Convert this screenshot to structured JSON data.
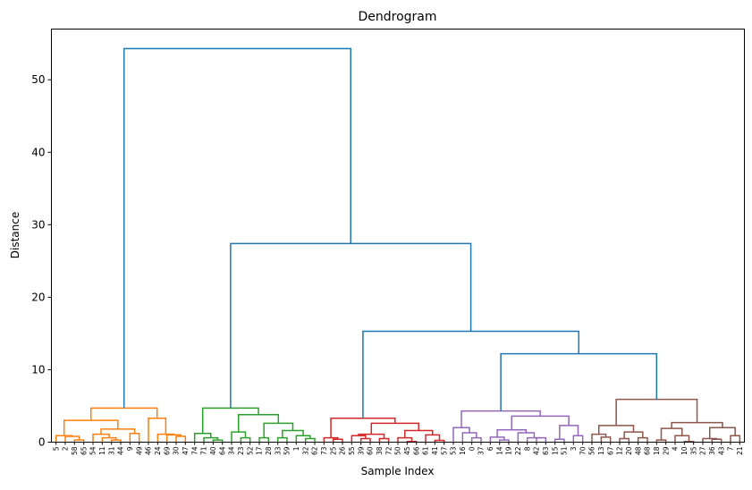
{
  "chart_data": {
    "type": "dendrogram",
    "title": "Dendrogram",
    "xlabel": "Sample Index",
    "ylabel": "Distance",
    "ylim": [
      0,
      57
    ],
    "yticks": [
      0,
      10,
      20,
      30,
      40,
      50
    ],
    "above_threshold_color": "#1f77b4",
    "tree": {
      "h": 54.3,
      "c": [
        {
          "h": 4.7,
          "color": "#ff7f0e",
          "c": [
            {
              "h": 3.0,
              "c": [
                {
                  "h": 0.9,
                  "c": [
                    "5",
                    {
                      "h": 0.8,
                      "c": [
                        "2",
                        {
                          "h": 0.3,
                          "c": [
                            "58",
                            "65"
                          ]
                        }
                      ]
                    }
                  ]
                },
                {
                  "h": 1.8,
                  "c": [
                    {
                      "h": 1.1,
                      "c": [
                        "54",
                        {
                          "h": 0.6,
                          "c": [
                            "11",
                            {
                              "h": 0.3,
                              "c": [
                                "31",
                                "44"
                              ]
                            }
                          ]
                        }
                      ]
                    },
                    {
                      "h": 1.2,
                      "c": [
                        "9",
                        "49"
                      ]
                    }
                  ]
                }
              ]
            },
            {
              "h": 3.3,
              "c": [
                "46",
                {
                  "h": 1.1,
                  "c": [
                    "24",
                    {
                      "h": 1.0,
                      "c": [
                        "69",
                        {
                          "h": 0.8,
                          "c": [
                            "30",
                            "47"
                          ]
                        }
                      ]
                    }
                  ]
                }
              ]
            }
          ]
        },
        {
          "h": 27.4,
          "c": [
            {
              "h": 4.7,
              "color": "#2ca02c",
              "c": [
                {
                  "h": 1.2,
                  "c": [
                    "74",
                    {
                      "h": 0.6,
                      "c": [
                        "71",
                        {
                          "h": 0.3,
                          "c": [
                            "40",
                            "64"
                          ]
                        }
                      ]
                    }
                  ]
                },
                {
                  "h": 3.8,
                  "c": [
                    {
                      "h": 1.4,
                      "c": [
                        "34",
                        {
                          "h": 0.6,
                          "c": [
                            "23",
                            "52"
                          ]
                        }
                      ]
                    },
                    {
                      "h": 2.6,
                      "c": [
                        {
                          "h": 0.6,
                          "c": [
                            "17",
                            "28"
                          ]
                        },
                        {
                          "h": 1.6,
                          "c": [
                            {
                              "h": 0.6,
                              "c": [
                                "33",
                                "59"
                              ]
                            },
                            {
                              "h": 0.9,
                              "c": [
                                "1",
                                {
                                  "h": 0.5,
                                  "c": [
                                    "32",
                                    "62"
                                  ]
                                }
                              ]
                            }
                          ]
                        }
                      ]
                    }
                  ]
                }
              ]
            },
            {
              "h": 15.3,
              "c": [
                {
                  "h": 3.3,
                  "color": "#d62728",
                  "c": [
                    {
                      "h": 0.6,
                      "c": [
                        "73",
                        {
                          "h": 0.4,
                          "c": [
                            "25",
                            "26"
                          ]
                        }
                      ]
                    },
                    {
                      "h": 2.6,
                      "c": [
                        {
                          "h": 1.1,
                          "c": [
                            {
                              "h": 0.9,
                              "c": [
                                "55",
                                {
                                  "h": 0.5,
                                  "c": [
                                    "39",
                                    "60"
                                  ]
                                }
                              ]
                            },
                            {
                              "h": 0.5,
                              "c": [
                                "38",
                                "72"
                              ]
                            }
                          ]
                        },
                        {
                          "h": 1.6,
                          "c": [
                            {
                              "h": 0.6,
                              "c": [
                                "50",
                                {
                                  "h": 0.1,
                                  "c": [
                                    "45",
                                    "66"
                                  ]
                                }
                              ]
                            },
                            {
                              "h": 1.0,
                              "c": [
                                "61",
                                {
                                  "h": 0.25,
                                  "c": [
                                    "41",
                                    "57"
                                  ]
                                }
                              ]
                            }
                          ]
                        }
                      ]
                    }
                  ]
                },
                {
                  "h": 12.2,
                  "c": [
                    {
                      "h": 4.3,
                      "color": "#9467bd",
                      "c": [
                        {
                          "h": 2.0,
                          "c": [
                            "53",
                            {
                              "h": 1.3,
                              "c": [
                                "16",
                                {
                                  "h": 0.6,
                                  "c": [
                                    "0",
                                    "37"
                                  ]
                                }
                              ]
                            }
                          ]
                        },
                        {
                          "h": 3.6,
                          "c": [
                            {
                              "h": 1.7,
                              "c": [
                                {
                                  "h": 0.7,
                                  "c": [
                                    "6",
                                    {
                                      "h": 0.3,
                                      "c": [
                                        "14",
                                        "19"
                                      ]
                                    }
                                  ]
                                },
                                {
                                  "h": 1.3,
                                  "c": [
                                    "22",
                                    {
                                      "h": 0.6,
                                      "c": [
                                        "8",
                                        {
                                          "h": 0.6,
                                          "c": [
                                            "42",
                                            "63"
                                          ]
                                        }
                                      ]
                                    }
                                  ]
                                }
                              ]
                            },
                            {
                              "h": 2.3,
                              "c": [
                                {
                                  "h": 0.4,
                                  "c": [
                                    "15",
                                    "51"
                                  ]
                                },
                                {
                                  "h": 0.9,
                                  "c": [
                                    "3",
                                    "70"
                                  ]
                                }
                              ]
                            }
                          ]
                        }
                      ]
                    },
                    {
                      "h": 5.9,
                      "color": "#8c564b",
                      "c": [
                        {
                          "h": 2.3,
                          "c": [
                            {
                              "h": 1.1,
                              "c": [
                                "56",
                                {
                                  "h": 0.7,
                                  "c": [
                                    "13",
                                    "67"
                                  ]
                                }
                              ]
                            },
                            {
                              "h": 1.4,
                              "c": [
                                {
                                  "h": 0.5,
                                  "c": [
                                    "12",
                                    "20"
                                  ]
                                },
                                {
                                  "h": 0.6,
                                  "c": [
                                    "48",
                                    "68"
                                  ]
                                }
                              ]
                            }
                          ]
                        },
                        {
                          "h": 2.7,
                          "c": [
                            {
                              "h": 1.9,
                              "c": [
                                {
                                  "h": 0.3,
                                  "c": [
                                    "18",
                                    "29"
                                  ]
                                },
                                {
                                  "h": 0.9,
                                  "c": [
                                    "4",
                                    {
                                      "h": 0.1,
                                      "c": [
                                        "10",
                                        "35"
                                      ]
                                    }
                                  ]
                                }
                              ]
                            },
                            {
                              "h": 2.0,
                              "c": [
                                {
                                  "h": 0.5,
                                  "c": [
                                    "27",
                                    {
                                      "h": 0.4,
                                      "c": [
                                        "36",
                                        "43"
                                      ]
                                    }
                                  ]
                                },
                                {
                                  "h": 0.9,
                                  "c": [
                                    "7",
                                    "21"
                                  ]
                                }
                              ]
                            }
                          ]
                        }
                      ]
                    }
                  ]
                }
              ]
            }
          ]
        }
      ]
    }
  }
}
